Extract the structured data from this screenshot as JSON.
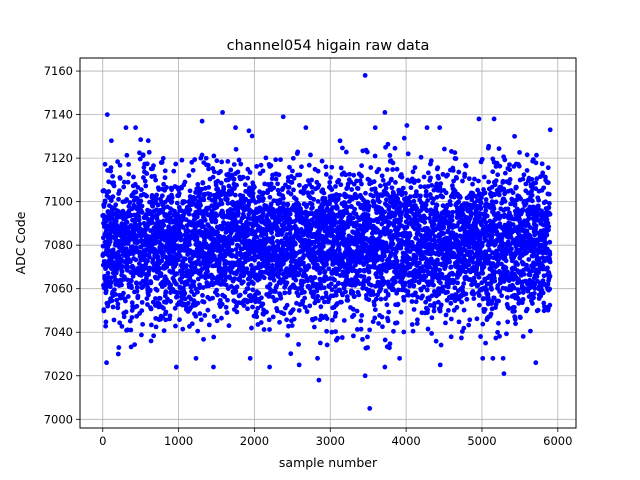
{
  "chart_data": {
    "type": "scatter",
    "title": "channel054 higain raw data",
    "xlabel": "sample number",
    "ylabel": "ADC Code",
    "xlim": [
      -300,
      6240
    ],
    "ylim": [
      6996,
      7166
    ],
    "xticks": [
      0,
      1000,
      2000,
      3000,
      4000,
      5000,
      6000
    ],
    "yticks": [
      7000,
      7020,
      7040,
      7060,
      7080,
      7100,
      7120,
      7140,
      7160
    ],
    "xtick_labels": [
      "0",
      "1000",
      "2000",
      "3000",
      "4000",
      "5000",
      "6000"
    ],
    "ytick_labels": [
      "7000",
      "7020",
      "7040",
      "7060",
      "7080",
      "7100",
      "7120",
      "7140",
      "7160"
    ],
    "grid": true,
    "marker_color": "#0000ff",
    "sample_count": 5900,
    "mean": 7081,
    "std": 17,
    "outliers": [
      {
        "x": 50,
        "y": 7026
      },
      {
        "x": 60,
        "y": 7140
      },
      {
        "x": 65,
        "y": 7052
      },
      {
        "x": 205,
        "y": 7030
      },
      {
        "x": 600,
        "y": 7128
      },
      {
        "x": 970,
        "y": 7024
      },
      {
        "x": 1230,
        "y": 7028
      },
      {
        "x": 1310,
        "y": 7137
      },
      {
        "x": 1460,
        "y": 7024
      },
      {
        "x": 1580,
        "y": 7141
      },
      {
        "x": 2200,
        "y": 7024
      },
      {
        "x": 2380,
        "y": 7139
      },
      {
        "x": 2590,
        "y": 7025
      },
      {
        "x": 2850,
        "y": 7018
      },
      {
        "x": 3460,
        "y": 7158
      },
      {
        "x": 3460,
        "y": 7020
      },
      {
        "x": 3520,
        "y": 7005
      },
      {
        "x": 3720,
        "y": 7141
      },
      {
        "x": 3720,
        "y": 7024
      },
      {
        "x": 4010,
        "y": 7135
      },
      {
        "x": 4450,
        "y": 7025
      },
      {
        "x": 4960,
        "y": 7138
      },
      {
        "x": 5010,
        "y": 7028
      },
      {
        "x": 5160,
        "y": 7138
      },
      {
        "x": 5290,
        "y": 7021
      },
      {
        "x": 5430,
        "y": 7130
      },
      {
        "x": 5710,
        "y": 7026
      },
      {
        "x": 5900,
        "y": 7133
      }
    ]
  }
}
